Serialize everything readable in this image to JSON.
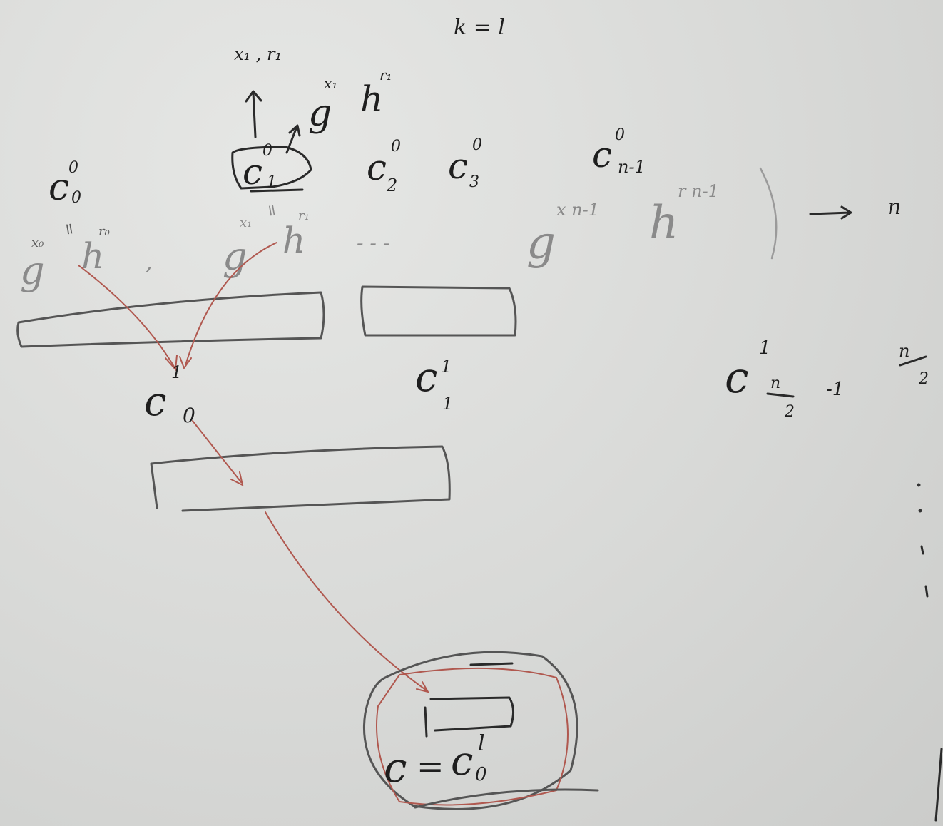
{
  "top": {
    "note": "k = l",
    "pair": "x₁ , r₁",
    "commit_base": "g",
    "commit_exp_x": "x₁",
    "commit_h": "h",
    "commit_exp_r": "r₁"
  },
  "level0": {
    "c": "c",
    "sup": "0",
    "subs": [
      "0",
      "1",
      "2",
      "3",
      "n-1"
    ],
    "eq_sign": "=",
    "g": "g",
    "h": "h",
    "x0": "x₀",
    "r0": "r₀",
    "x1": "x₁",
    "r1": "r₁",
    "xn": "x n-1",
    "rn": "r n-1",
    "comma": ",",
    "dots": "- - -",
    "count": "n"
  },
  "level1": {
    "c": "c",
    "sup": "1",
    "sub0": "0",
    "sub1": "1",
    "sub_last_num": "n",
    "sub_last_den": "2",
    "sub_last_minus": "-1",
    "count_num": "n",
    "count_den": "2"
  },
  "result": {
    "lhs": "c",
    "eq": "=",
    "rhs": "c",
    "rhs_sub": "0",
    "rhs_sup": "l"
  }
}
